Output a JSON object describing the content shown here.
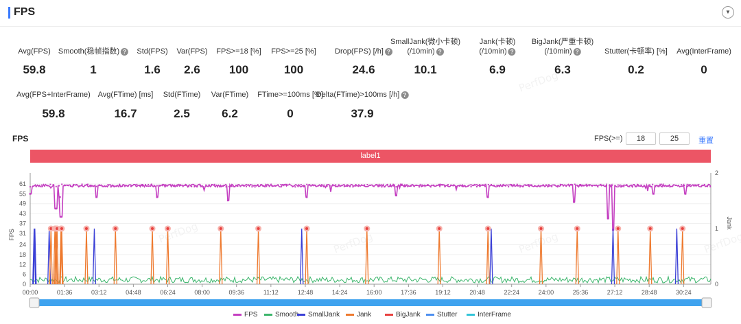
{
  "header": {
    "title": "FPS",
    "collapse_icon": "chevron-down-icon"
  },
  "stats_row1": [
    {
      "label": "Avg(FPS)",
      "value": "59.8",
      "help": false
    },
    {
      "label": "Smooth(稳帧指数)",
      "value": "1",
      "help": true
    },
    {
      "label": "Std(FPS)",
      "value": "1.6",
      "help": false
    },
    {
      "label": "Var(FPS)",
      "value": "2.6",
      "help": false
    },
    {
      "label": "FPS>=18 [%]",
      "value": "100",
      "help": false
    },
    {
      "label": "FPS>=25 [%]",
      "value": "100",
      "help": false
    },
    {
      "label": "Drop(FPS) [/h]",
      "value": "24.6",
      "help": true
    },
    {
      "label": "SmallJank(微小卡顿)",
      "label2": "(/10min)",
      "value": "10.1",
      "help": true
    },
    {
      "label": "Jank(卡顿)",
      "label2": "(/10min)",
      "value": "6.9",
      "help": true
    },
    {
      "label": "BigJank(严重卡顿)",
      "label2": "(/10min)",
      "value": "6.3",
      "help": true
    },
    {
      "label": "Stutter(卡顿率) [%]",
      "value": "0.2",
      "help": false
    },
    {
      "label": "Avg(InterFrame)",
      "value": "0",
      "help": false
    }
  ],
  "stats_row2": [
    {
      "label": "Avg(FPS+InterFrame)",
      "value": "59.8",
      "help": false
    },
    {
      "label": "Avg(FTime) [ms]",
      "value": "16.7",
      "help": false
    },
    {
      "label": "Std(FTime)",
      "value": "2.5",
      "help": false
    },
    {
      "label": "Var(FTime)",
      "value": "6.2",
      "help": false
    },
    {
      "label": "FTime>=100ms [%]",
      "value": "0",
      "help": false
    },
    {
      "label": "Delta(FTime)>100ms [/h]",
      "value": "37.9",
      "help": true
    }
  ],
  "chart_section": {
    "title": "FPS",
    "threshold_label": "FPS(>=)",
    "threshold1": "18",
    "threshold2": "25",
    "reset_label": "重置",
    "band_label": "label1",
    "watermark": "PerfDog"
  },
  "chart_data": {
    "type": "line",
    "left_axis": {
      "label": "FPS",
      "ticks": [
        "61",
        "55",
        "49",
        "43",
        "37",
        "31",
        "24",
        "18",
        "12",
        "6",
        "0"
      ]
    },
    "right_axis": {
      "label": "Jank",
      "ticks": [
        "2",
        "1",
        "0"
      ]
    },
    "x_ticks": [
      "00:00",
      "01:36",
      "03:12",
      "04:48",
      "06:24",
      "08:00",
      "09:36",
      "11:12",
      "12:48",
      "14:24",
      "16:00",
      "17:36",
      "19:12",
      "20:48",
      "22:24",
      "24:00",
      "25:36",
      "27:12",
      "28:48",
      "30:24"
    ],
    "fps_baseline": 60,
    "fps_dips": [
      {
        "t": "00:00",
        "fps": 55
      },
      {
        "t": "01:12",
        "fps": 46
      },
      {
        "t": "01:23",
        "fps": 53
      },
      {
        "t": "01:26",
        "fps": 41
      },
      {
        "t": "03:05",
        "fps": 53
      },
      {
        "t": "05:54",
        "fps": 53
      },
      {
        "t": "09:12",
        "fps": 51
      },
      {
        "t": "12:52",
        "fps": 53
      },
      {
        "t": "17:02",
        "fps": 54
      },
      {
        "t": "21:18",
        "fps": 53
      },
      {
        "t": "25:18",
        "fps": 50
      },
      {
        "t": "26:53",
        "fps": 40
      },
      {
        "t": "27:07",
        "fps": 33
      },
      {
        "t": "29:00",
        "fps": 55
      },
      {
        "t": "30:29",
        "fps": 55
      }
    ],
    "jank_times": [
      "00:58",
      "01:09",
      "01:12",
      "01:15",
      "01:26",
      "01:28",
      "02:37",
      "03:58",
      "05:41",
      "06:24",
      "08:52",
      "10:37",
      "12:52",
      "15:40",
      "19:02",
      "21:18",
      "23:46",
      "25:27",
      "27:21",
      "28:51",
      "30:21"
    ],
    "smalljank_times": [
      "00:11",
      "00:13",
      "00:53",
      "02:59",
      "12:38",
      "21:27",
      "27:07",
      "30:05"
    ],
    "series": [
      {
        "name": "FPS",
        "color": "#c43fc1"
      },
      {
        "name": "Smooth",
        "color": "#3bb56b"
      },
      {
        "name": "SmallJank",
        "color": "#3a3fd6"
      },
      {
        "name": "Jank",
        "color": "#ee7a2f"
      },
      {
        "name": "BigJank",
        "color": "#e8413f"
      },
      {
        "name": "Stutter",
        "color": "#4e8ff0"
      },
      {
        "name": "InterFrame",
        "color": "#33c4d8"
      }
    ]
  }
}
